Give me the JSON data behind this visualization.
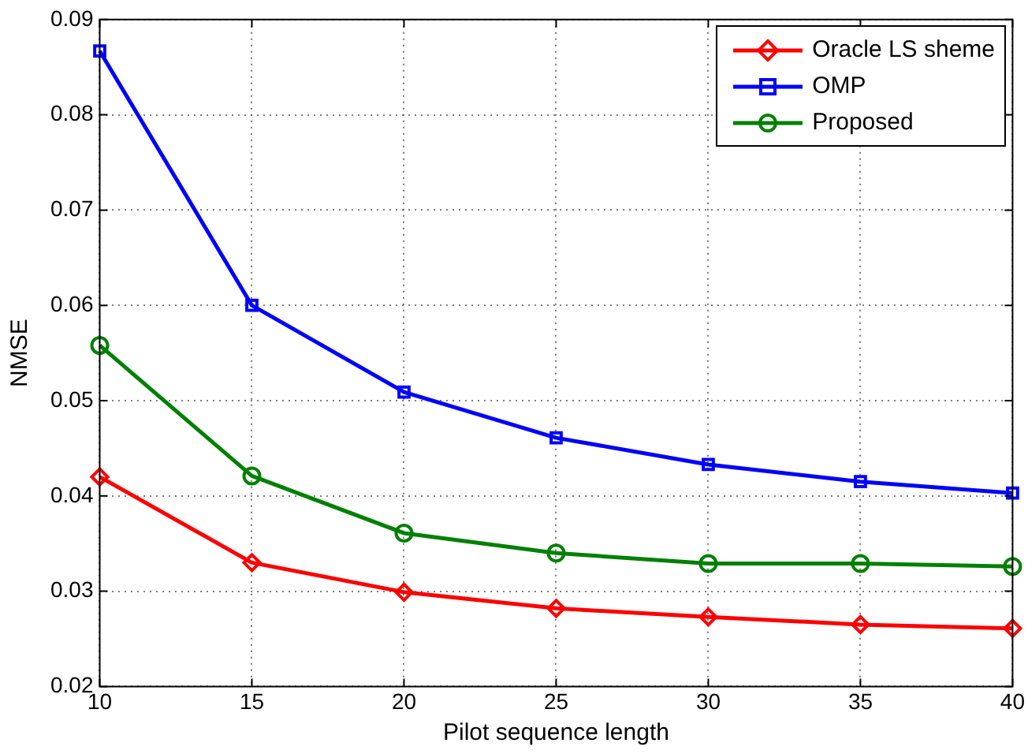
{
  "chart_data": {
    "type": "line",
    "xlabel": "Pilot sequence length",
    "ylabel": "NMSE",
    "x": [
      10,
      15,
      20,
      25,
      30,
      35,
      40
    ],
    "xlim": [
      10,
      40
    ],
    "xticks": [
      10,
      15,
      20,
      25,
      30,
      35,
      40
    ],
    "ylim": [
      0.02,
      0.09
    ],
    "yticks": [
      0.02,
      0.03,
      0.04,
      0.05,
      0.06,
      0.07,
      0.08,
      0.09
    ],
    "grid": true,
    "legend": "top right",
    "line_style": "solid",
    "series": [
      {
        "name": "Oracle LS sheme",
        "color": "#ff0000",
        "marker": "diamond",
        "values": [
          0.042,
          0.033,
          0.0299,
          0.0282,
          0.0273,
          0.0265,
          0.0261
        ]
      },
      {
        "name": "OMP",
        "color": "#0000ff",
        "marker": "square",
        "values": [
          0.0867,
          0.06,
          0.0509,
          0.0461,
          0.0433,
          0.0415,
          0.0403
        ]
      },
      {
        "name": "Proposed",
        "color": "#008000",
        "marker": "circle",
        "values": [
          0.0558,
          0.0421,
          0.0361,
          0.034,
          0.0329,
          0.0329,
          0.0326
        ]
      }
    ]
  }
}
